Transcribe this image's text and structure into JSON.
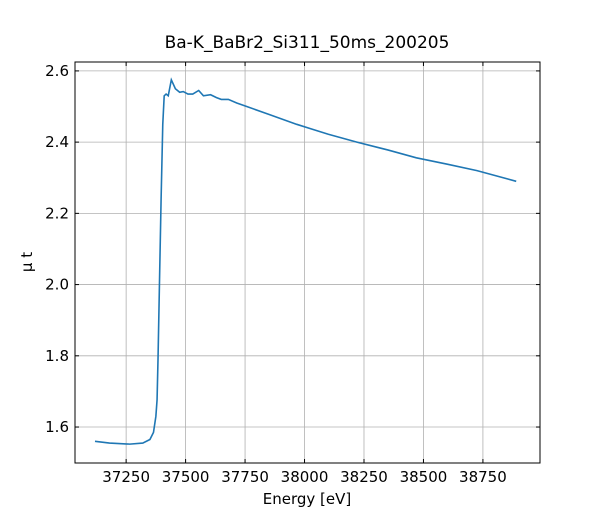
{
  "chart_data": {
    "type": "line",
    "title": "Ba-K_BaBr2_Si311_50ms_200205",
    "xlabel": "Energy [eV]",
    "ylabel": "μ t",
    "x": [
      37119,
      37180,
      37265,
      37320,
      37350,
      37365,
      37375,
      37380,
      37384,
      37390,
      37397,
      37404,
      37410,
      37418,
      37427,
      37440,
      37457,
      37475,
      37490,
      37510,
      37530,
      37555,
      37575,
      37605,
      37630,
      37650,
      37680,
      37715,
      37757,
      37850,
      37967,
      38100,
      38220,
      38350,
      38470,
      38600,
      38725,
      38890
    ],
    "series": [
      {
        "name": "μ t",
        "color": "#1f77b4",
        "values": [
          1.56,
          1.555,
          1.552,
          1.555,
          1.565,
          1.585,
          1.63,
          1.676,
          1.79,
          2.0,
          2.24,
          2.45,
          2.53,
          2.535,
          2.53,
          2.575,
          2.55,
          2.54,
          2.542,
          2.535,
          2.535,
          2.545,
          2.53,
          2.533,
          2.525,
          2.52,
          2.52,
          2.51,
          2.5,
          2.478,
          2.45,
          2.422,
          2.4,
          2.378,
          2.356,
          2.338,
          2.32,
          2.29
        ]
      }
    ],
    "xlim": [
      37035,
      38990
    ],
    "ylim": [
      1.499,
      2.625
    ],
    "xticks": [
      37250,
      37500,
      37750,
      38000,
      38250,
      38500,
      38750
    ],
    "yticks": [
      1.6,
      1.8,
      {
        "value": 2,
        "label": "2.0"
      },
      2.2,
      2.4,
      2.6
    ],
    "grid": true
  }
}
